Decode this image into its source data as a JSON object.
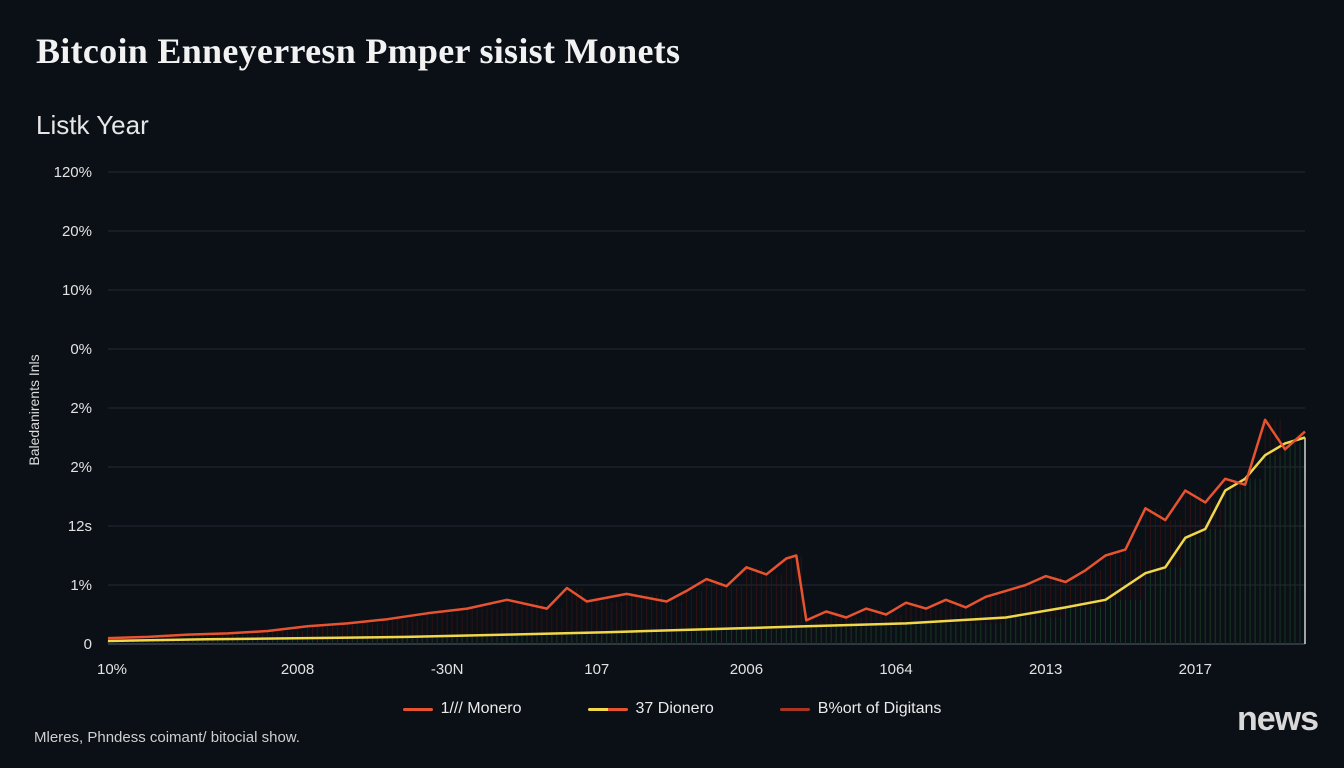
{
  "page": {
    "title": "Bitcoin Enneyerresn Pmper sisist Monets",
    "subtitle": "Listk Year",
    "footer_note": "Mleres, Phndess coimant/ bitocial show.",
    "brand": "news"
  },
  "chart_data": {
    "type": "line",
    "title": "Bitcoin Enneyerresn Pmper sisist Monets",
    "subtitle": "Listk Year",
    "xlabel": "",
    "ylabel": "Baledanirents Inls",
    "y_tick_labels": [
      "0",
      "1%",
      "12s",
      "2%",
      "2%",
      "0%",
      "10%",
      "20%",
      "120%"
    ],
    "x_tick_labels": [
      "10%",
      "2008",
      "-30N",
      "107",
      "2006",
      "1064",
      "2013",
      "2017"
    ],
    "x_index_range": [
      0,
      120
    ],
    "y_index_range": [
      0,
      8
    ],
    "grid": true,
    "legend_position": "bottom-center",
    "series": [
      {
        "name": "1/// Monero",
        "color": "#e8532f",
        "points": [
          [
            0,
            0.1
          ],
          [
            4,
            0.12
          ],
          [
            8,
            0.16
          ],
          [
            12,
            0.18
          ],
          [
            16,
            0.22
          ],
          [
            20,
            0.3
          ],
          [
            24,
            0.35
          ],
          [
            28,
            0.42
          ],
          [
            32,
            0.52
          ],
          [
            36,
            0.6
          ],
          [
            40,
            0.75
          ],
          [
            44,
            0.6
          ],
          [
            46,
            0.95
          ],
          [
            48,
            0.72
          ],
          [
            52,
            0.85
          ],
          [
            56,
            0.72
          ],
          [
            58,
            0.9
          ],
          [
            60,
            1.1
          ],
          [
            62,
            0.98
          ],
          [
            64,
            1.3
          ],
          [
            66,
            1.18
          ],
          [
            68,
            1.45
          ],
          [
            69,
            1.5
          ],
          [
            70,
            0.4
          ],
          [
            72,
            0.55
          ],
          [
            74,
            0.45
          ],
          [
            76,
            0.6
          ],
          [
            78,
            0.5
          ],
          [
            80,
            0.7
          ],
          [
            82,
            0.6
          ],
          [
            84,
            0.75
          ],
          [
            86,
            0.62
          ],
          [
            88,
            0.8
          ],
          [
            90,
            0.9
          ],
          [
            92,
            1.0
          ],
          [
            94,
            1.15
          ],
          [
            96,
            1.05
          ],
          [
            98,
            1.25
          ],
          [
            100,
            1.5
          ],
          [
            102,
            1.6
          ],
          [
            104,
            2.3
          ],
          [
            106,
            2.1
          ],
          [
            108,
            2.6
          ],
          [
            110,
            2.4
          ],
          [
            112,
            2.8
          ],
          [
            114,
            2.7
          ],
          [
            116,
            3.8
          ],
          [
            118,
            3.3
          ],
          [
            120,
            3.6
          ]
        ]
      },
      {
        "name": "37 Dionero",
        "color": "#f0d84a",
        "points": [
          [
            0,
            0.05
          ],
          [
            10,
            0.08
          ],
          [
            20,
            0.1
          ],
          [
            30,
            0.12
          ],
          [
            40,
            0.16
          ],
          [
            50,
            0.2
          ],
          [
            60,
            0.25
          ],
          [
            70,
            0.3
          ],
          [
            80,
            0.35
          ],
          [
            90,
            0.45
          ],
          [
            96,
            0.62
          ],
          [
            100,
            0.75
          ],
          [
            104,
            1.2
          ],
          [
            106,
            1.3
          ],
          [
            108,
            1.8
          ],
          [
            110,
            1.95
          ],
          [
            112,
            2.6
          ],
          [
            114,
            2.8
          ],
          [
            116,
            3.2
          ],
          [
            118,
            3.4
          ],
          [
            120,
            3.5
          ]
        ]
      },
      {
        "name": "B%ort of Digitans",
        "color": "#a93622",
        "points": []
      }
    ]
  },
  "legend": [
    {
      "label": "1/// Monero",
      "color": "#e8532f",
      "style": "single"
    },
    {
      "label": "37 Dionero",
      "color": "#f0d84a",
      "color2": "#e8532f",
      "style": "pair"
    },
    {
      "label": "B%ort of Digitans",
      "color": "#a93622",
      "style": "single"
    }
  ]
}
